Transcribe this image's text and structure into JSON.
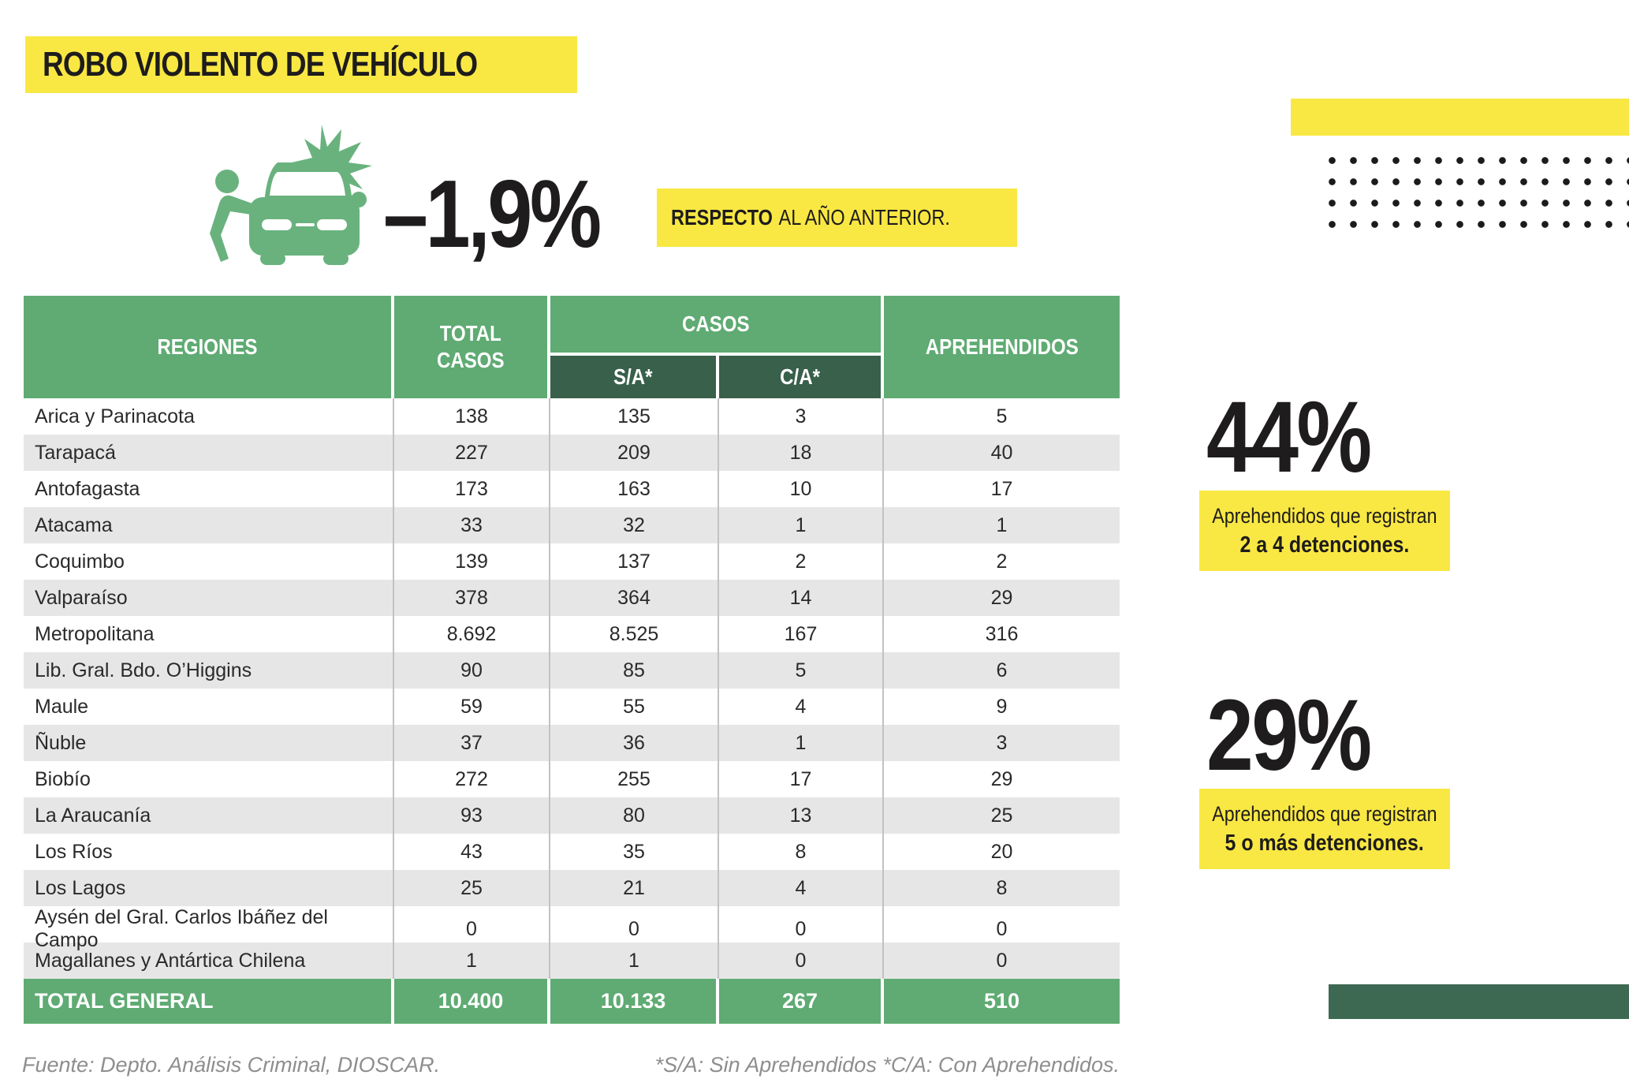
{
  "page_title": "ROBO VIOLENTO DE VEHÍCULO",
  "stat": {
    "value": "–1,9%",
    "note_bold": "RESPECTO",
    "note_rest": "AL AÑO ANTERIOR."
  },
  "table": {
    "headers": {
      "regiones": "REGIONES",
      "total_casos": "TOTAL\nCASOS",
      "casos": "CASOS",
      "sa": "S/A*",
      "ca": "C/A*",
      "aprehendidos": "APREHENDIDOS"
    },
    "rows": [
      {
        "region": "Arica y Parinacota",
        "total": "138",
        "sa": "135",
        "ca": "3",
        "apr": "5"
      },
      {
        "region": "Tarapacá",
        "total": "227",
        "sa": "209",
        "ca": "18",
        "apr": "40"
      },
      {
        "region": "Antofagasta",
        "total": "173",
        "sa": "163",
        "ca": "10",
        "apr": "17"
      },
      {
        "region": "Atacama",
        "total": "33",
        "sa": "32",
        "ca": "1",
        "apr": "1"
      },
      {
        "region": "Coquimbo",
        "total": "139",
        "sa": "137",
        "ca": "2",
        "apr": "2"
      },
      {
        "region": "Valparaíso",
        "total": "378",
        "sa": "364",
        "ca": "14",
        "apr": "29"
      },
      {
        "region": "Metropolitana",
        "total": "8.692",
        "sa": "8.525",
        "ca": "167",
        "apr": "316"
      },
      {
        "region": "Lib. Gral. Bdo. O’Higgins",
        "total": "90",
        "sa": "85",
        "ca": "5",
        "apr": "6"
      },
      {
        "region": "Maule",
        "total": "59",
        "sa": "55",
        "ca": "4",
        "apr": "9"
      },
      {
        "region": "Ñuble",
        "total": "37",
        "sa": "36",
        "ca": "1",
        "apr": "3"
      },
      {
        "region": "Biobío",
        "total": "272",
        "sa": "255",
        "ca": "17",
        "apr": "29"
      },
      {
        "region": "La Araucanía",
        "total": "93",
        "sa": "80",
        "ca": "13",
        "apr": "25"
      },
      {
        "region": "Los Ríos",
        "total": "43",
        "sa": "35",
        "ca": "8",
        "apr": "20"
      },
      {
        "region": "Los Lagos",
        "total": "25",
        "sa": "21",
        "ca": "4",
        "apr": "8"
      },
      {
        "region": "Aysén del Gral. Carlos Ibáñez del Campo",
        "total": "0",
        "sa": "0",
        "ca": "0",
        "apr": "0"
      },
      {
        "region": "Magallanes y Antártica Chilena",
        "total": "1",
        "sa": "1",
        "ca": "0",
        "apr": "0"
      }
    ],
    "total_row": {
      "label": "TOTAL GENERAL",
      "total": "10.400",
      "sa": "10.133",
      "ca": "267",
      "apr": "510"
    }
  },
  "callouts": [
    {
      "value": "44%",
      "line1": "Aprehendidos que registran",
      "line2": "2 a 4 detenciones."
    },
    {
      "value": "29%",
      "line1": "Aprehendidos que registran",
      "line2": "5 o más detenciones."
    }
  ],
  "footer": {
    "source": "Fuente: Depto. Análisis Criminal, DIOSCAR.",
    "legend": "*S/A: Sin Aprehendidos *C/A: Con Aprehendidos."
  },
  "colors": {
    "accent_yellow": "#F9E843",
    "table_green": "#5FAB73",
    "table_dark_green": "#38604A",
    "deco_dark_green": "#3D6952",
    "row_alt_gray": "#E6E6E6",
    "icon_green": "#69B27E",
    "dot_black": "#1B1B1B",
    "footer_gray": "#8E8E8E"
  },
  "chart_data": {
    "type": "table",
    "title": "ROBO VIOLENTO DE VEHÍCULO",
    "change_vs_previous_year_pct": -1.9,
    "columns": [
      "REGIONES",
      "TOTAL CASOS",
      "CASOS S/A*",
      "CASOS C/A*",
      "APREHENDIDOS"
    ],
    "rows": [
      [
        "Arica y Parinacota",
        138,
        135,
        3,
        5
      ],
      [
        "Tarapacá",
        227,
        209,
        18,
        40
      ],
      [
        "Antofagasta",
        173,
        163,
        10,
        17
      ],
      [
        "Atacama",
        33,
        32,
        1,
        1
      ],
      [
        "Coquimbo",
        139,
        137,
        2,
        2
      ],
      [
        "Valparaíso",
        378,
        364,
        14,
        29
      ],
      [
        "Metropolitana",
        8692,
        8525,
        167,
        316
      ],
      [
        "Lib. Gral. Bdo. O’Higgins",
        90,
        85,
        5,
        6
      ],
      [
        "Maule",
        59,
        55,
        4,
        9
      ],
      [
        "Ñuble",
        37,
        36,
        1,
        3
      ],
      [
        "Biobío",
        272,
        255,
        17,
        29
      ],
      [
        "La Araucanía",
        93,
        80,
        13,
        25
      ],
      [
        "Los Ríos",
        43,
        35,
        8,
        20
      ],
      [
        "Los Lagos",
        25,
        21,
        4,
        8
      ],
      [
        "Aysén del Gral. Carlos Ibáñez del Campo",
        0,
        0,
        0,
        0
      ],
      [
        "Magallanes y Antártica Chilena",
        1,
        1,
        0,
        0
      ]
    ],
    "total_row": [
      "TOTAL GENERAL",
      10400,
      10133,
      267,
      510
    ],
    "callouts": [
      {
        "value_pct": 44,
        "label": "Aprehendidos que registran 2 a 4 detenciones."
      },
      {
        "value_pct": 29,
        "label": "Aprehendidos que registran 5 o más detenciones."
      }
    ],
    "footnotes": [
      "Fuente: Depto. Análisis Criminal, DIOSCAR.",
      "*S/A: Sin Aprehendidos *C/A: Con Aprehendidos."
    ]
  }
}
